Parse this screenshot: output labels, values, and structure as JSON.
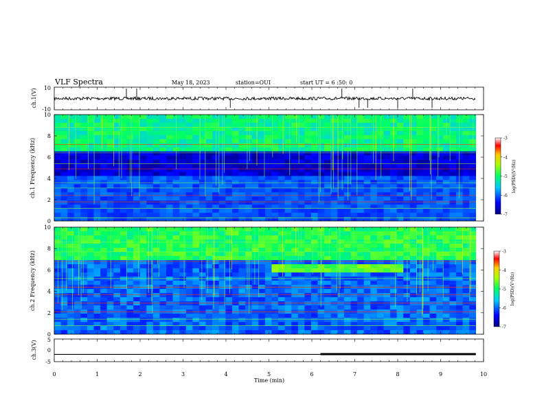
{
  "header": {
    "title": "VLF Spectra",
    "date": "May 18, 2023",
    "station": "station=OUI",
    "start": "start UT = 6 :50: 0"
  },
  "chart_data": [
    {
      "type": "line",
      "panel": "ch1-waveform",
      "ylabel": "ch.1(V)",
      "ylim": [
        -10,
        10
      ],
      "yticks": [
        "10",
        "-10"
      ],
      "baseline": 0,
      "spikes_min": [
        1.68,
        1.92,
        4.1,
        6.7,
        7.1,
        7.3,
        8.0,
        8.35,
        8.8
      ]
    },
    {
      "type": "heatmap",
      "panel": "ch1-spectrogram",
      "ylabel": "ch.1 Frequency (kHz)",
      "ylim": [
        0,
        10
      ],
      "yticks": [
        "0",
        "2",
        "4",
        "6",
        "8",
        "10"
      ],
      "colorbar": {
        "label": "log(PSD)(V²/Hz)",
        "range": [
          -7,
          -3
        ],
        "ticks": [
          "-3",
          "-4",
          "-5",
          "-6",
          "-7"
        ]
      },
      "features": {
        "dark_band_khz": [
          4.2,
          6.0
        ],
        "interference_lines_khz": [
          0.3,
          1.2,
          1.8,
          2.4,
          3.1,
          3.6,
          4.9,
          5.4,
          6.4,
          7.2,
          8.8
        ]
      }
    },
    {
      "type": "heatmap",
      "panel": "ch2-spectrogram",
      "ylabel": "ch.2 Frequency (kHz)",
      "ylim": [
        0,
        10
      ],
      "yticks": [
        "0",
        "2",
        "4",
        "6",
        "8",
        "10"
      ],
      "colorbar": {
        "label": "log(PSD)(V²/Hz)",
        "range": [
          -7,
          -3
        ],
        "ticks": [
          "-3",
          "-4",
          "-5",
          "-6",
          "-7"
        ]
      },
      "features": {
        "enhanced_band_khz": [
          5.9,
          6.6
        ],
        "enhanced_band_time_min": [
          5.0,
          8.2
        ]
      }
    },
    {
      "type": "line",
      "panel": "ch3-level",
      "ylabel": "ch.3(V)",
      "ylim": [
        -5,
        5
      ],
      "yticks": [
        "5",
        "0",
        "-5"
      ],
      "level_v": -1.8,
      "thick_from_min": 6.2
    }
  ],
  "xaxis": {
    "label": "Time (min)",
    "xlim": [
      0,
      10
    ],
    "ticks": [
      "0",
      "1",
      "2",
      "3",
      "4",
      "5",
      "6",
      "7",
      "8",
      "9",
      "10"
    ],
    "data_end_min": 9.82
  },
  "colors": {
    "colormap": [
      "#000080",
      "#0000ff",
      "#00aaff",
      "#00ffff",
      "#00ff88",
      "#88ff00",
      "#ffff00",
      "#ff8800",
      "#ff0000",
      "#ffffff"
    ],
    "frame": "#000000"
  }
}
